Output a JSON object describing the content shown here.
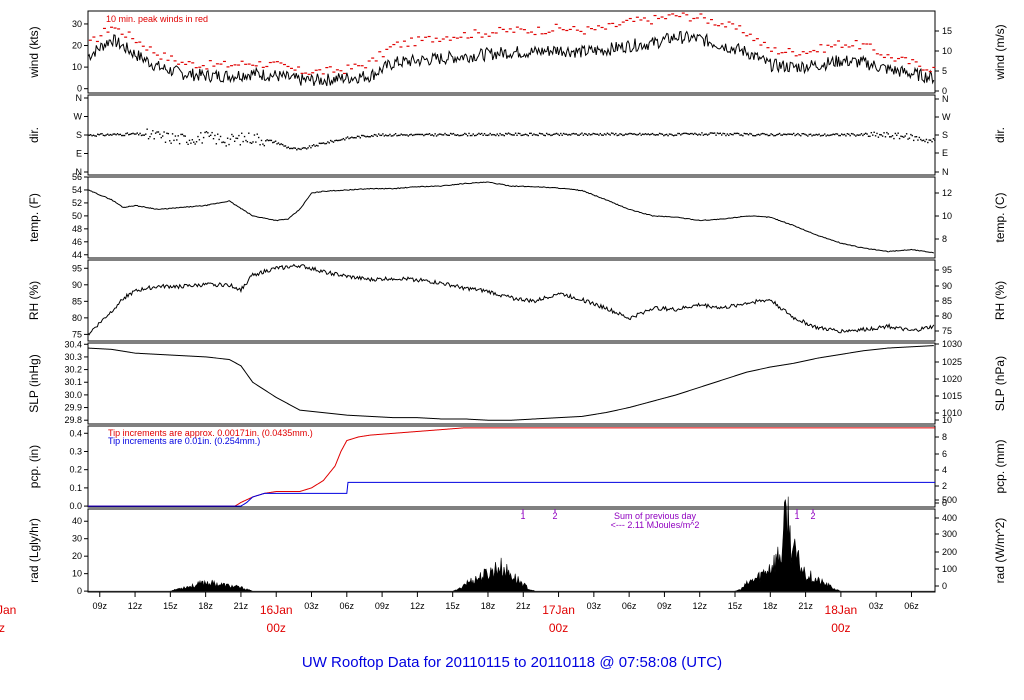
{
  "title": "UW Rooftop Data for 20110115  to  20110118 @ 07:58:08  (UTC)",
  "colors": {
    "title": "#0000e0",
    "peak": "#e00000",
    "pcp_red": "#e00000",
    "pcp_blue": "#0000e0",
    "annotation": "#9000c0",
    "day": "#e00000"
  },
  "chart_data": {
    "type": "line",
    "time_axis": {
      "start": "2011-01-15 07:58 UTC",
      "end": "2011-01-18 07:58 UTC",
      "tick_labels": [
        "09z",
        "12z",
        "15z",
        "18z",
        "21z",
        "03z",
        "06z",
        "09z",
        "12z",
        "15z",
        "18z",
        "21z",
        "03z",
        "06z",
        "09z",
        "12z",
        "15z",
        "18z",
        "21z",
        "03z",
        "06z"
      ],
      "day_labels": [
        {
          "label": "16Jan",
          "hour": "00z"
        },
        {
          "label": "17Jan",
          "hour": "00z"
        },
        {
          "label": "18Jan",
          "hour": "00z"
        }
      ],
      "cut_off_left": [
        "Jan",
        "z"
      ]
    },
    "panels": [
      {
        "id": "wind",
        "ylabel_left": "wind (kts)",
        "ylabel_right": "wind (m/s)",
        "left_ticks": [
          "0",
          "10",
          "20",
          "30"
        ],
        "right_ticks": [
          "0",
          "5",
          "10",
          "15"
        ],
        "ylim": [
          -2,
          36
        ],
        "annotation": "10 min. peak winds in red",
        "series": [
          {
            "color": "#000000",
            "hours": [
              0,
              2,
              4,
              6,
              8,
              10,
              12,
              14,
              16,
              18,
              20,
              22,
              24,
              26,
              28,
              30,
              32,
              34,
              36,
              38,
              40,
              42,
              44,
              46,
              48,
              50,
              52,
              54,
              56,
              58,
              60,
              62,
              64,
              66,
              68,
              70,
              72
            ],
            "values": [
              15,
              23,
              16,
              10,
              7,
              6,
              6,
              7,
              6,
              4,
              4,
              5,
              6,
              12,
              13,
              14,
              15,
              16,
              17,
              17,
              18,
              17,
              18,
              20,
              21,
              24,
              23,
              20,
              17,
              11,
              10,
              11,
              13,
              12,
              9,
              7,
              5
            ]
          },
          {
            "name": "10 min. peak winds",
            "color": "#e00000",
            "hours": [
              0,
              2,
              4,
              6,
              8,
              10,
              12,
              14,
              16,
              18,
              20,
              22,
              24,
              26,
              28,
              30,
              32,
              34,
              36,
              38,
              40,
              42,
              44,
              46,
              48,
              50,
              52,
              54,
              56,
              58,
              60,
              62,
              64,
              66,
              68,
              70,
              72
            ],
            "values": [
              20,
              29,
              23,
              16,
              12,
              11,
              11,
              12,
              11,
              8,
              8,
              9,
              12,
              20,
              22,
              24,
              25,
              26,
              27,
              27,
              28,
              27,
              28,
              31,
              32,
              34,
              33,
              30,
              26,
              18,
              17,
              18,
              21,
              20,
              15,
              12,
              9
            ]
          }
        ]
      },
      {
        "id": "dir",
        "ylabel_left": "dir.",
        "ylabel_right": "dir.",
        "left_ticks": [
          "N",
          "E",
          "S",
          "W",
          "N"
        ],
        "right_ticks": [
          "N",
          "E",
          "S",
          "W",
          "N"
        ],
        "series": [
          {
            "color": "#000000",
            "hours": [
              0,
              2,
              4,
              6,
              8,
              10,
              12,
              14,
              16,
              17,
              18,
              20,
              22,
              24,
              26,
              28,
              30,
              32,
              34,
              36,
              38,
              40,
              42,
              44,
              46,
              48,
              50,
              52,
              54,
              56,
              58,
              60,
              62,
              64,
              66,
              68,
              70,
              72
            ],
            "values": [
              180,
              182,
              185,
              175,
              160,
              170,
              155,
              168,
              145,
              120,
              108,
              140,
              165,
              178,
              182,
              180,
              182,
              183,
              182,
              184,
              183,
              182,
              184,
              185,
              183,
              184,
              182,
              185,
              184,
              182,
              183,
              182,
              180,
              182,
              181,
              180,
              170,
              150
            ]
          }
        ]
      },
      {
        "id": "temp",
        "ylabel_left": "temp. (F)",
        "ylabel_right": "temp. (C)",
        "left_ticks": [
          "44",
          "46",
          "48",
          "50",
          "52",
          "54",
          "56"
        ],
        "right_ticks": [
          "8",
          "10",
          "12"
        ],
        "ylim": [
          43.5,
          56
        ],
        "series": [
          {
            "color": "#000000",
            "hours": [
              0,
              2,
              3,
              4,
              6,
              8,
              10,
              12,
              14,
              16,
              17,
              18,
              19,
              20,
              22,
              24,
              26,
              28,
              30,
              32,
              34,
              36,
              38,
              40,
              42,
              44,
              46,
              48,
              50,
              52,
              54,
              56,
              58,
              60,
              62,
              64,
              66,
              68,
              70,
              72
            ],
            "values": [
              54,
              52.5,
              51.3,
              51.6,
              51,
              51.3,
              51.6,
              52.3,
              50,
              49.3,
              49.5,
              51,
              53.5,
              53.8,
              54,
              54.2,
              54.2,
              54.5,
              54.6,
              55,
              55.2,
              54.6,
              54.5,
              54.3,
              53.9,
              52.5,
              51,
              50,
              49.8,
              49.3,
              49.5,
              50,
              49.8,
              48.5,
              47,
              45.8,
              45,
              44.5,
              44.8,
              44.3
            ]
          }
        ]
      },
      {
        "id": "rh",
        "ylabel_left": "RH (%)",
        "ylabel_right": "RH (%)",
        "left_ticks": [
          "75",
          "80",
          "85",
          "90",
          "95"
        ],
        "right_ticks": [
          "75",
          "80",
          "85",
          "90",
          "95"
        ],
        "ylim": [
          73,
          97.5
        ],
        "series": [
          {
            "color": "#000000",
            "hours": [
              0,
              2,
              3,
              4,
              5,
              6,
              8,
              10,
              12,
              13,
              14,
              16,
              18,
              20,
              22,
              24,
              26,
              28,
              30,
              32,
              34,
              36,
              38,
              40,
              42,
              44,
              46,
              48,
              50,
              52,
              54,
              56,
              58,
              60,
              62,
              64,
              66,
              68,
              70,
              72
            ],
            "values": [
              75,
              82,
              86,
              88,
              89,
              89.5,
              89.5,
              90,
              90,
              88.5,
              93,
              95,
              95.8,
              94,
              92.5,
              91.5,
              92,
              91.5,
              90.5,
              89,
              88,
              86,
              85,
              87.5,
              85.5,
              83,
              79.8,
              83,
              82.5,
              84,
              83,
              84.5,
              85.5,
              80,
              77,
              76,
              76.5,
              77.5,
              76,
              77.5
            ]
          }
        ]
      },
      {
        "id": "slp",
        "ylabel_left": "SLP (inHg)",
        "ylabel_right": "SLP (hPa)",
        "left_ticks": [
          "29.8",
          "29.9",
          "30.0",
          "30.1",
          "30.2",
          "30.3",
          "30.4"
        ],
        "right_ticks": [
          "1010",
          "1015",
          "1020",
          "1025",
          "1030"
        ],
        "ylim": [
          29.77,
          30.41
        ],
        "series": [
          {
            "color": "#000000",
            "hours": [
              0,
              2,
              4,
              6,
              8,
              10,
              12,
              13,
              14,
              16,
              18,
              20,
              22,
              24,
              26,
              28,
              30,
              32,
              34,
              36,
              38,
              40,
              42,
              44,
              46,
              48,
              50,
              52,
              54,
              56,
              58,
              60,
              62,
              64,
              66,
              68,
              70,
              72
            ],
            "values": [
              30.37,
              30.36,
              30.33,
              30.32,
              30.31,
              30.3,
              30.28,
              30.23,
              30.1,
              29.98,
              29.88,
              29.86,
              29.84,
              29.83,
              29.82,
              29.82,
              29.81,
              29.81,
              29.8,
              29.8,
              29.81,
              29.82,
              29.83,
              29.86,
              29.9,
              29.95,
              30.0,
              30.06,
              30.12,
              30.18,
              30.22,
              30.25,
              30.29,
              30.32,
              30.35,
              30.37,
              30.38,
              30.39
            ]
          }
        ]
      },
      {
        "id": "pcp",
        "ylabel_left": "pcp. (in)",
        "ylabel_right": "pcp. (mm)",
        "left_ticks": [
          "0.0",
          "0.1",
          "0.2",
          "0.3",
          "0.4"
        ],
        "right_ticks": [
          "0",
          "2",
          "4",
          "6",
          "8",
          "10"
        ],
        "ylim": [
          -0.005,
          0.44
        ],
        "legend": [
          {
            "text": "Tip increments are approx. 0.00171in. (0.0435mm.)",
            "color": "#e00000"
          },
          {
            "text": "Tip increments are 0.01in. (0.254mm.)",
            "color": "#0000e0"
          }
        ],
        "series": [
          {
            "name": "red gauge",
            "color": "#e00000",
            "hours": [
              0,
              12.5,
              13,
              14,
              15,
              16,
              18,
              19,
              20,
              21,
              21.5,
              22,
              23,
              24,
              26,
              28,
              30,
              32,
              34,
              36,
              72
            ],
            "values": [
              0,
              0,
              0.02,
              0.05,
              0.07,
              0.08,
              0.08,
              0.1,
              0.14,
              0.22,
              0.3,
              0.36,
              0.38,
              0.39,
              0.4,
              0.41,
              0.42,
              0.43,
              0.43,
              0.43,
              0.43
            ]
          },
          {
            "name": "blue gauge",
            "color": "#0000e0",
            "hours": [
              0,
              13,
              13.5,
              14,
              15,
              16,
              22,
              22.1,
              72
            ],
            "values": [
              0,
              0,
              0.02,
              0.05,
              0.07,
              0.07,
              0.07,
              0.13,
              0.13
            ]
          }
        ]
      },
      {
        "id": "rad",
        "ylabel_left": "rad (Lgly/hr)",
        "ylabel_right": "rad (W/m^2)",
        "left_ticks": [
          "0",
          "10",
          "20",
          "30",
          "40"
        ],
        "right_ticks": [
          "0",
          "100",
          "200",
          "300",
          "400",
          "500"
        ],
        "ylim": [
          -0.5,
          47
        ],
        "annotation_marks": [
          "1",
          "2",
          "1",
          "2"
        ],
        "annotation": [
          "Sum of previous day",
          "<--- 2.11 MJoules/m^2"
        ],
        "series": [
          {
            "type": "area",
            "color": "#000000",
            "hours": [
              0,
              7,
              7.5,
              8,
              9,
              10,
              11,
              12,
              13,
              13.5,
              14,
              31,
              31.5,
              32,
              33,
              34,
              35,
              36,
              37,
              37.5,
              38,
              55,
              55.5,
              56,
              57,
              58,
              59,
              59.4,
              59.7,
              60,
              60.5,
              61,
              62,
              63,
              63.5,
              64,
              72
            ],
            "values": [
              0,
              0,
              1,
              2,
              3,
              5,
              4,
              3,
              2,
              1,
              0,
              0,
              1,
              4,
              7,
              10,
              14,
              9,
              4,
              1,
              0,
              0,
              1,
              4,
              8,
              14,
              22,
              48,
              30,
              22,
              15,
              10,
              6,
              3,
              1,
              0,
              0
            ]
          }
        ]
      }
    ]
  }
}
